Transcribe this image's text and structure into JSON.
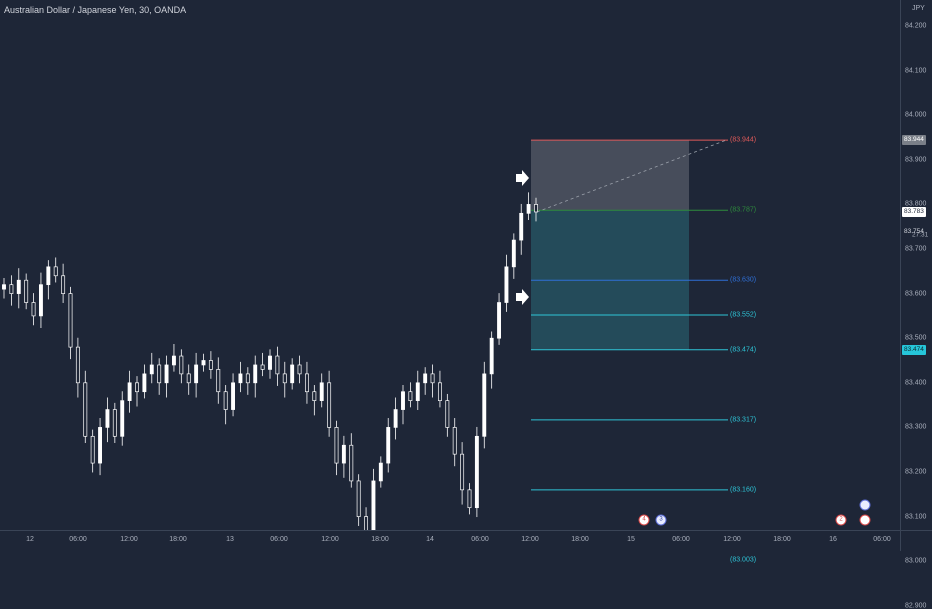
{
  "header": {
    "title": "Australian Dollar / Japanese Yen, 30, OANDA",
    "currency": "JPY"
  },
  "price_axis": {
    "ticks": [
      "84.200",
      "84.100",
      "84.000",
      "83.900",
      "83.800",
      "83.700",
      "83.600",
      "83.500",
      "83.400",
      "83.300",
      "83.200",
      "83.100",
      "83.000",
      "82.900"
    ],
    "tp_badge": "83.944",
    "current_badge": "83.783",
    "ref_badge": "83.754",
    "countdown": "27:31",
    "entry_badge": "83.474"
  },
  "time_axis": {
    "ticks": [
      "12",
      "06:00",
      "12:00",
      "18:00",
      "13",
      "06:00",
      "12:00",
      "18:00",
      "14",
      "06:00",
      "12:00",
      "18:00",
      "15",
      "06:00",
      "12:00",
      "18:00",
      "16",
      "06:00"
    ]
  },
  "levels": [
    {
      "price": 83.944,
      "label": "(83.944)",
      "color": "#e05a5a"
    },
    {
      "price": 83.787,
      "label": "(83.787)",
      "color": "#2e8b3d"
    },
    {
      "price": 83.63,
      "label": "(83.630)",
      "color": "#2f6fd6"
    },
    {
      "price": 83.552,
      "label": "(83.552)",
      "color": "#2ec4d6"
    },
    {
      "price": 83.474,
      "label": "(83.474)",
      "color": "#2ec4d6"
    },
    {
      "price": 83.317,
      "label": "(83.317)",
      "color": "#2ec4d6"
    },
    {
      "price": 83.16,
      "label": "(83.160)",
      "color": "#2ec4d6"
    },
    {
      "price": 83.003,
      "label": "(83.003)",
      "color": "#2ec4d6"
    }
  ],
  "colors": {
    "background": "#1e2637",
    "candle": "#ffffff",
    "profit_zone": "#7a7f88",
    "risk_zone": "#2a6a78",
    "price_badge_current": "#ffffff",
    "price_badge_entry": "#26c6da",
    "price_badge_tp": "#7a7f88"
  },
  "events": [
    {
      "label": "4",
      "type": "flag-icon"
    },
    {
      "label": "3",
      "type": "au-icon"
    },
    {
      "label": "2",
      "type": "flag-icon"
    },
    {
      "label": "",
      "type": "au-icon"
    },
    {
      "label": "",
      "type": "flag-icon"
    }
  ],
  "chart_data": {
    "type": "candlestick",
    "symbol": "Australian Dollar / Japanese Yen",
    "interval": "30",
    "source": "OANDA",
    "ylim": [
      82.88,
      84.24
    ],
    "last_price": 83.783,
    "position": {
      "entry": 83.474,
      "take_profit": 83.944,
      "stop": 83.474
    },
    "series": [
      {
        "name": "price",
        "close": [
          83.62,
          83.6,
          83.63,
          83.58,
          83.55,
          83.62,
          83.66,
          83.64,
          83.6,
          83.48,
          83.4,
          83.28,
          83.22,
          83.3,
          83.34,
          83.28,
          83.36,
          83.4,
          83.38,
          83.42,
          83.44,
          83.4,
          83.44,
          83.46,
          83.42,
          83.4,
          83.44,
          83.45,
          83.43,
          83.38,
          83.34,
          83.4,
          83.42,
          83.4,
          83.44,
          83.43,
          83.46,
          83.42,
          83.4,
          83.44,
          83.42,
          83.38,
          83.36,
          83.4,
          83.3,
          83.22,
          83.26,
          83.18,
          83.1,
          83.06,
          83.18,
          83.22,
          83.3,
          83.34,
          83.38,
          83.36,
          83.4,
          83.42,
          83.4,
          83.36,
          83.3,
          83.24,
          83.16,
          83.12,
          83.28,
          83.42,
          83.5,
          83.58,
          83.66,
          83.72,
          83.78,
          83.8,
          83.783
        ]
      }
    ]
  }
}
